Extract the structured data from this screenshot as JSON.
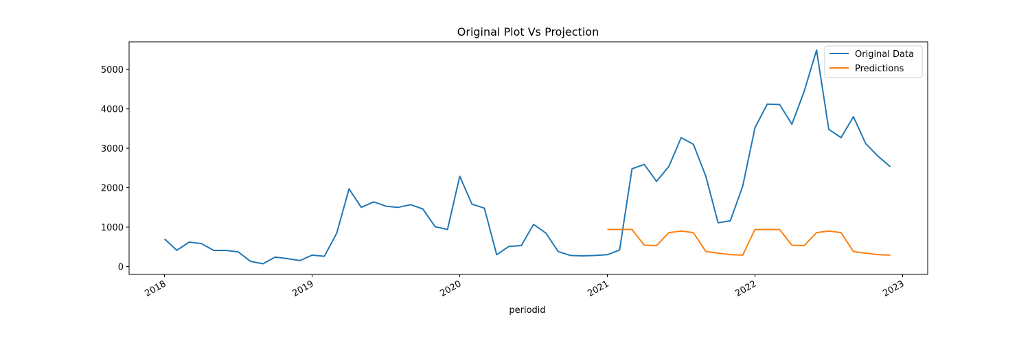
{
  "chart_data": {
    "type": "line",
    "title": "Original Plot Vs Projection",
    "xlabel": "periodid",
    "ylabel": "",
    "x_range": [
      2017.76,
      2023.17
    ],
    "ylim": [
      -200,
      5700
    ],
    "x_ticks": [
      2018,
      2019,
      2020,
      2021,
      2022,
      2023
    ],
    "x_tick_labels": [
      "2018",
      "2019",
      "2020",
      "2021",
      "2022",
      "2023"
    ],
    "y_ticks": [
      0,
      1000,
      2000,
      3000,
      4000,
      5000
    ],
    "y_tick_labels": [
      "0",
      "1000",
      "2000",
      "3000",
      "4000",
      "5000"
    ],
    "legend_position": "top-right",
    "grid": false,
    "series": [
      {
        "name": "Original Data",
        "color": "#1f77b4",
        "x": [
          2018.0,
          2018.083,
          2018.167,
          2018.25,
          2018.333,
          2018.417,
          2018.5,
          2018.583,
          2018.667,
          2018.75,
          2018.833,
          2018.917,
          2019.0,
          2019.083,
          2019.167,
          2019.25,
          2019.333,
          2019.417,
          2019.5,
          2019.583,
          2019.667,
          2019.75,
          2019.833,
          2019.917,
          2020.0,
          2020.083,
          2020.167,
          2020.25,
          2020.333,
          2020.417,
          2020.5,
          2020.583,
          2020.667,
          2020.75,
          2020.833,
          2020.917,
          2021.0,
          2021.083,
          2021.167,
          2021.25,
          2021.333,
          2021.417,
          2021.5,
          2021.583,
          2021.667,
          2021.75,
          2021.833,
          2021.917,
          2022.0,
          2022.083,
          2022.167,
          2022.25,
          2022.333,
          2022.417,
          2022.5,
          2022.583,
          2022.667,
          2022.75,
          2022.833,
          2022.917
        ],
        "values": [
          700,
          410,
          620,
          580,
          410,
          410,
          370,
          130,
          70,
          240,
          200,
          150,
          290,
          260,
          850,
          1970,
          1500,
          1640,
          1530,
          1500,
          1570,
          1460,
          1010,
          940,
          2290,
          1580,
          1480,
          300,
          510,
          530,
          1070,
          850,
          380,
          280,
          270,
          280,
          300,
          420,
          2480,
          2590,
          2160,
          2540,
          3270,
          3100,
          2290,
          1110,
          1160,
          2040,
          3520,
          4120,
          4110,
          3610,
          4440,
          5490,
          3480,
          3270,
          3800,
          3120,
          2800,
          2530
        ]
      },
      {
        "name": "Predictions",
        "color": "#ff7f0e",
        "x": [
          2021.0,
          2021.083,
          2021.167,
          2021.25,
          2021.333,
          2021.417,
          2021.5,
          2021.583,
          2021.667,
          2021.75,
          2021.833,
          2021.917,
          2022.0,
          2022.083,
          2022.167,
          2022.25,
          2022.333,
          2022.417,
          2022.5,
          2022.583,
          2022.667,
          2022.75,
          2022.833,
          2022.917
        ],
        "values": [
          940,
          940,
          940,
          540,
          530,
          860,
          900,
          860,
          380,
          340,
          300,
          290,
          940,
          940,
          940,
          540,
          530,
          860,
          900,
          860,
          380,
          340,
          300,
          290
        ]
      }
    ]
  }
}
